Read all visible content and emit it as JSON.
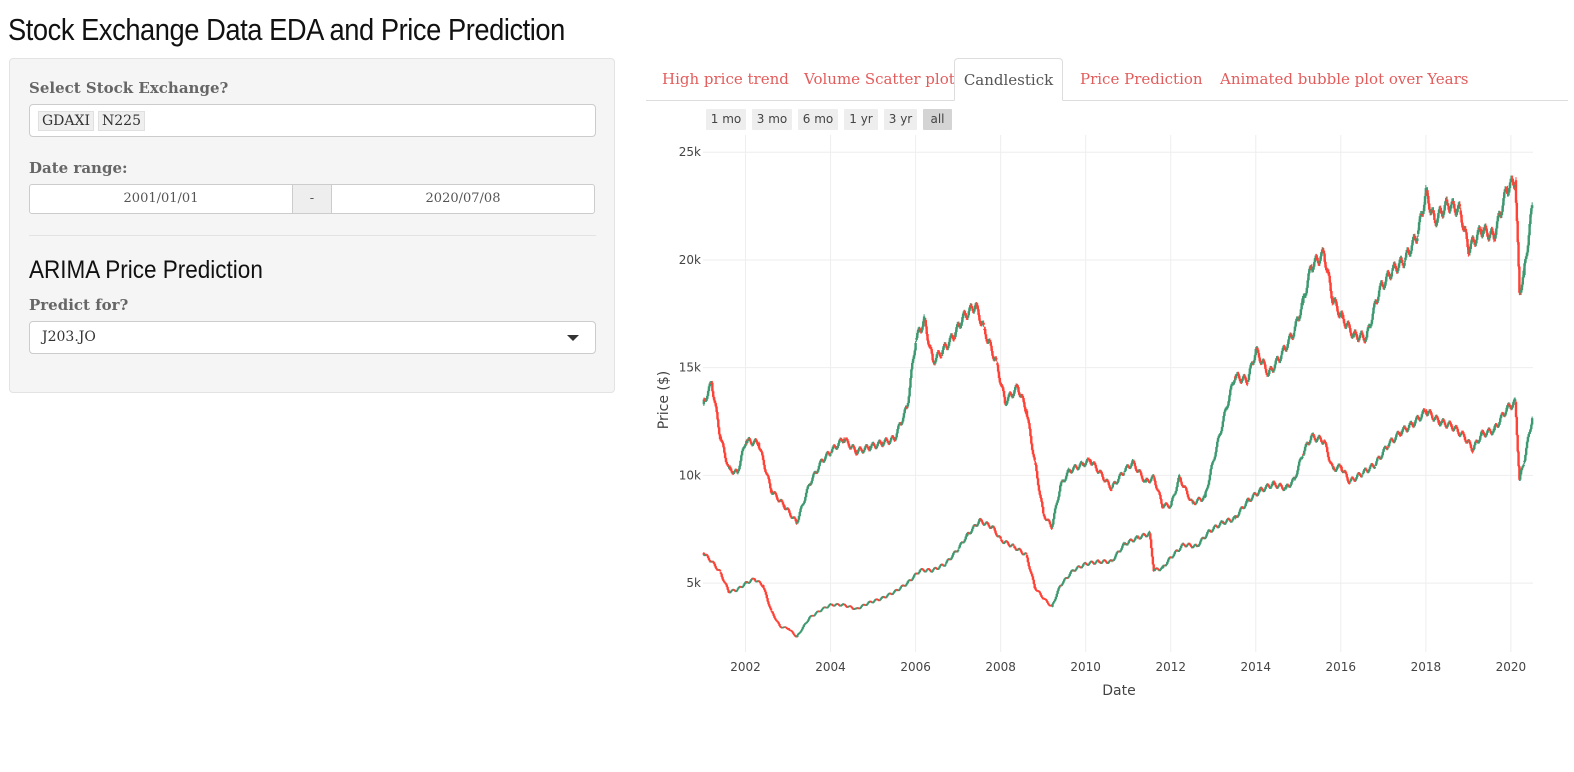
{
  "app": {
    "title": "Stock Exchange Data EDA and Price Prediction"
  },
  "sidebar": {
    "exchange_label": "Select Stock Exchange?",
    "selected_exchanges": [
      "GDAXI",
      "N225"
    ],
    "date_label": "Date range:",
    "date_start": "2001/01/01",
    "date_sep": "-",
    "date_end": "2020/07/08",
    "section_title": "ARIMA Price Prediction",
    "predict_label": "Predict for?",
    "predict_value": "J203.JO"
  },
  "tabs": [
    {
      "label": "High price trend"
    },
    {
      "label": "Volume Scatter plot"
    },
    {
      "label": "Candlestick",
      "active": true
    },
    {
      "label": "Price Prediction"
    },
    {
      "label": "Animated bubble plot over Years"
    }
  ],
  "range_buttons": [
    {
      "label": "1 mo"
    },
    {
      "label": "3 mo"
    },
    {
      "label": "6 mo"
    },
    {
      "label": "1 yr"
    },
    {
      "label": "3 yr"
    },
    {
      "label": "all",
      "active": true
    }
  ],
  "colors": {
    "increasing": "#3d9970",
    "decreasing": "#ff4136",
    "tab_link": "#e35c5c"
  },
  "icons": {
    "select_caret": "caret-down-icon"
  },
  "chart_data": {
    "type": "candlestick",
    "xlabel": "Date",
    "ylabel": "Price ($)",
    "xlim": [
      2001.0,
      2020.52
    ],
    "ylim": [
      1800,
      25800
    ],
    "x_ticks": [
      2002,
      2004,
      2006,
      2008,
      2010,
      2012,
      2014,
      2016,
      2018,
      2020
    ],
    "x_tick_labels": [
      "2002",
      "2004",
      "2006",
      "2008",
      "2010",
      "2012",
      "2014",
      "2016",
      "2018",
      "2020"
    ],
    "y_ticks": [
      5000,
      10000,
      15000,
      20000,
      25000
    ],
    "y_tick_labels": [
      "5k",
      "10k",
      "15k",
      "20k",
      "25k"
    ],
    "series": [
      {
        "points": [
          [
            2001.0,
            13300
          ],
          [
            2001.2,
            14300
          ],
          [
            2001.4,
            11800
          ],
          [
            2001.6,
            10300
          ],
          [
            2001.8,
            10100
          ],
          [
            2002.0,
            11600
          ],
          [
            2002.3,
            11500
          ],
          [
            2002.6,
            9300
          ],
          [
            2002.9,
            8600
          ],
          [
            2003.2,
            7800
          ],
          [
            2003.5,
            9600
          ],
          [
            2003.8,
            10700
          ],
          [
            2004.0,
            11100
          ],
          [
            2004.3,
            11700
          ],
          [
            2004.6,
            11100
          ],
          [
            2004.9,
            11300
          ],
          [
            2005.2,
            11500
          ],
          [
            2005.5,
            11700
          ],
          [
            2005.8,
            13200
          ],
          [
            2006.0,
            16300
          ],
          [
            2006.2,
            17200
          ],
          [
            2006.4,
            15300
          ],
          [
            2006.6,
            15700
          ],
          [
            2006.9,
            16500
          ],
          [
            2007.1,
            17300
          ],
          [
            2007.4,
            17900
          ],
          [
            2007.6,
            16800
          ],
          [
            2007.9,
            15200
          ],
          [
            2008.1,
            13400
          ],
          [
            2008.4,
            14100
          ],
          [
            2008.6,
            13000
          ],
          [
            2008.8,
            10600
          ],
          [
            2009.0,
            8200
          ],
          [
            2009.2,
            7600
          ],
          [
            2009.4,
            9500
          ],
          [
            2009.6,
            10200
          ],
          [
            2009.9,
            10500
          ],
          [
            2010.1,
            10700
          ],
          [
            2010.3,
            10200
          ],
          [
            2010.6,
            9400
          ],
          [
            2010.9,
            10200
          ],
          [
            2011.1,
            10600
          ],
          [
            2011.4,
            9700
          ],
          [
            2011.6,
            9900
          ],
          [
            2011.8,
            8600
          ],
          [
            2012.0,
            8600
          ],
          [
            2012.2,
            9900
          ],
          [
            2012.5,
            8700
          ],
          [
            2012.8,
            9000
          ],
          [
            2013.0,
            10700
          ],
          [
            2013.3,
            13100
          ],
          [
            2013.5,
            14600
          ],
          [
            2013.8,
            14400
          ],
          [
            2014.0,
            15800
          ],
          [
            2014.3,
            14700
          ],
          [
            2014.6,
            15600
          ],
          [
            2014.9,
            16700
          ],
          [
            2015.1,
            18000
          ],
          [
            2015.3,
            19700
          ],
          [
            2015.6,
            20300
          ],
          [
            2015.8,
            18200
          ],
          [
            2016.0,
            17400
          ],
          [
            2016.3,
            16500
          ],
          [
            2016.6,
            16400
          ],
          [
            2016.9,
            18600
          ],
          [
            2017.2,
            19500
          ],
          [
            2017.5,
            20000
          ],
          [
            2017.8,
            21200
          ],
          [
            2018.0,
            23100
          ],
          [
            2018.2,
            21800
          ],
          [
            2018.5,
            22600
          ],
          [
            2018.8,
            22300
          ],
          [
            2019.0,
            20500
          ],
          [
            2019.3,
            21400
          ],
          [
            2019.6,
            21100
          ],
          [
            2019.9,
            23300
          ],
          [
            2020.1,
            23700
          ],
          [
            2020.2,
            18500
          ],
          [
            2020.3,
            19300
          ],
          [
            2020.5,
            22500
          ]
        ]
      },
      {
        "points": [
          [
            2001.0,
            6400
          ],
          [
            2001.2,
            6000
          ],
          [
            2001.4,
            5500
          ],
          [
            2001.6,
            4600
          ],
          [
            2001.8,
            4700
          ],
          [
            2002.0,
            5000
          ],
          [
            2002.2,
            5200
          ],
          [
            2002.4,
            4900
          ],
          [
            2002.6,
            3700
          ],
          [
            2002.8,
            3000
          ],
          [
            2003.0,
            2900
          ],
          [
            2003.2,
            2500
          ],
          [
            2003.5,
            3400
          ],
          [
            2003.8,
            3800
          ],
          [
            2004.0,
            4000
          ],
          [
            2004.3,
            4000
          ],
          [
            2004.6,
            3800
          ],
          [
            2004.9,
            4100
          ],
          [
            2005.2,
            4300
          ],
          [
            2005.5,
            4600
          ],
          [
            2005.8,
            5000
          ],
          [
            2006.1,
            5600
          ],
          [
            2006.4,
            5600
          ],
          [
            2006.7,
            5900
          ],
          [
            2007.0,
            6600
          ],
          [
            2007.2,
            7200
          ],
          [
            2007.5,
            7900
          ],
          [
            2007.8,
            7600
          ],
          [
            2008.0,
            7000
          ],
          [
            2008.3,
            6700
          ],
          [
            2008.6,
            6300
          ],
          [
            2008.8,
            4800
          ],
          [
            2009.0,
            4300
          ],
          [
            2009.2,
            3900
          ],
          [
            2009.4,
            4900
          ],
          [
            2009.7,
            5600
          ],
          [
            2010.0,
            5900
          ],
          [
            2010.3,
            6000
          ],
          [
            2010.6,
            6000
          ],
          [
            2010.9,
            6800
          ],
          [
            2011.2,
            7100
          ],
          [
            2011.5,
            7300
          ],
          [
            2011.6,
            5600
          ],
          [
            2011.8,
            5700
          ],
          [
            2012.0,
            6200
          ],
          [
            2012.3,
            6800
          ],
          [
            2012.6,
            6700
          ],
          [
            2012.9,
            7400
          ],
          [
            2013.2,
            7800
          ],
          [
            2013.5,
            8000
          ],
          [
            2013.8,
            8800
          ],
          [
            2014.1,
            9300
          ],
          [
            2014.4,
            9600
          ],
          [
            2014.7,
            9400
          ],
          [
            2014.9,
            9800
          ],
          [
            2015.1,
            11000
          ],
          [
            2015.3,
            11800
          ],
          [
            2015.6,
            11600
          ],
          [
            2015.8,
            10300
          ],
          [
            2016.0,
            10400
          ],
          [
            2016.2,
            9700
          ],
          [
            2016.5,
            10100
          ],
          [
            2016.8,
            10500
          ],
          [
            2017.1,
            11400
          ],
          [
            2017.4,
            12000
          ],
          [
            2017.7,
            12400
          ],
          [
            2018.0,
            13000
          ],
          [
            2018.3,
            12500
          ],
          [
            2018.6,
            12300
          ],
          [
            2018.9,
            11800
          ],
          [
            2019.1,
            11200
          ],
          [
            2019.3,
            11900
          ],
          [
            2019.6,
            12100
          ],
          [
            2019.9,
            13100
          ],
          [
            2020.1,
            13400
          ],
          [
            2020.2,
            9800
          ],
          [
            2020.3,
            10600
          ],
          [
            2020.5,
            12700
          ]
        ]
      }
    ]
  }
}
